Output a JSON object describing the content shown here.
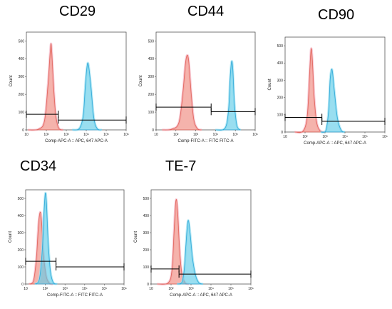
{
  "colors": {
    "red_fill": "#f08a80",
    "red_stroke": "#e0645a",
    "red_halo": "#f7b8c8",
    "blue_fill": "#63cde8",
    "blue_stroke": "#2fa7d8",
    "blue_halo": "#9fe3f2",
    "grey_fill": "#8fa6ad",
    "gate": "#000000",
    "frame": "#555555"
  },
  "chart_data": [
    {
      "type": "histogram",
      "title": "CD29",
      "xlabel": "Comp-APC-A :: APC, 647 APC-A",
      "ylabel": "Count",
      "x_scale": "log",
      "xlim": [
        10,
        1000000
      ],
      "x_ticks": [
        "10",
        "10²",
        "10³",
        "10⁴",
        "10⁵",
        "10⁶"
      ],
      "ylim": [
        0,
        550
      ],
      "y_ticks": [
        "0",
        "100",
        "200",
        "300",
        "400",
        "500"
      ],
      "series": [
        {
          "color": "red",
          "values": [
            [
              12,
              0
            ],
            [
              40,
              4
            ],
            [
              80,
              50
            ],
            [
              120,
              250
            ],
            [
              150,
              410
            ],
            [
              170,
              485
            ],
            [
              190,
              430
            ],
            [
              240,
              220
            ],
            [
              300,
              80
            ],
            [
              420,
              10
            ],
            [
              700,
              0
            ]
          ]
        },
        {
          "color": "blue",
          "values": [
            [
              2000,
              0
            ],
            [
              4500,
              8
            ],
            [
              7000,
              80
            ],
            [
              9000,
              250
            ],
            [
              11000,
              360
            ],
            [
              13000,
              365
            ],
            [
              17000,
              250
            ],
            [
              24000,
              70
            ],
            [
              35000,
              8
            ],
            [
              60000,
              0
            ]
          ]
        }
      ],
      "gates": [
        {
          "y": 88,
          "x": [
            10,
            400
          ]
        },
        {
          "y": 55,
          "x": [
            400,
            1000000
          ]
        }
      ]
    },
    {
      "type": "histogram",
      "title": "CD44",
      "xlabel": "Comp-FITC-A :: FITC FITC-A",
      "ylabel": "Count",
      "x_scale": "log",
      "xlim": [
        10,
        1000000
      ],
      "x_ticks": [
        "10",
        "10²",
        "10³",
        "10⁴",
        "10⁵",
        "10⁶"
      ],
      "ylim": [
        0,
        550
      ],
      "y_ticks": [
        "0",
        "100",
        "200",
        "300",
        "400",
        "500"
      ],
      "series": [
        {
          "color": "red",
          "values": [
            [
              20,
              0
            ],
            [
              60,
              4
            ],
            [
              140,
              40
            ],
            [
              220,
              200
            ],
            [
              300,
              370
            ],
            [
              370,
              420
            ],
            [
              450,
              380
            ],
            [
              600,
              200
            ],
            [
              800,
              60
            ],
            [
              1200,
              8
            ],
            [
              2000,
              0
            ]
          ]
        },
        {
          "color": "blue",
          "values": [
            [
              10000,
              0
            ],
            [
              30000,
              10
            ],
            [
              45000,
              110
            ],
            [
              55000,
              300
            ],
            [
              65000,
              385
            ],
            [
              75000,
              340
            ],
            [
              90000,
              150
            ],
            [
              120000,
              25
            ],
            [
              180000,
              0
            ]
          ]
        }
      ],
      "gates": [
        {
          "y": 128,
          "x": [
            10,
            6000
          ]
        },
        {
          "y": 103,
          "x": [
            6000,
            1000000
          ]
        }
      ]
    },
    {
      "type": "histogram",
      "title": "CD90",
      "xlabel": "Comp-APC-A :: APC, 647 APC-A",
      "ylabel": "Count",
      "x_scale": "log",
      "xlim": [
        10,
        1000000
      ],
      "x_ticks": [
        "10",
        "10²",
        "10³",
        "10⁴",
        "10⁵",
        "10⁶"
      ],
      "ylim": [
        0,
        550
      ],
      "y_ticks": [
        "0",
        "100",
        "200",
        "300",
        "400",
        "500"
      ],
      "series": [
        {
          "color": "red",
          "values": [
            [
              30,
              0
            ],
            [
              80,
              6
            ],
            [
              130,
              100
            ],
            [
              170,
              350
            ],
            [
              200,
              480
            ],
            [
              230,
              430
            ],
            [
              290,
              200
            ],
            [
              380,
              60
            ],
            [
              550,
              10
            ],
            [
              900,
              0
            ]
          ]
        },
        {
          "color": "blue",
          "values": [
            [
              600,
              0
            ],
            [
              1100,
              10
            ],
            [
              1500,
              120
            ],
            [
              1800,
              300
            ],
            [
              2100,
              360
            ],
            [
              2400,
              345
            ],
            [
              3000,
              230
            ],
            [
              4200,
              80
            ],
            [
              6500,
              10
            ],
            [
              10000,
              0
            ]
          ]
        }
      ],
      "gates": [
        {
          "y": 85,
          "x": [
            10,
            700
          ]
        },
        {
          "y": 62,
          "x": [
            700,
            1000000
          ]
        }
      ]
    },
    {
      "type": "histogram",
      "title": "CD34",
      "xlabel": "Comp-FITC-A :: FITC FITC-A",
      "ylabel": "Count",
      "x_scale": "log",
      "xlim": [
        10,
        1000000
      ],
      "x_ticks": [
        "10",
        "10²",
        "10³",
        "10⁴",
        "10⁵",
        "10⁶"
      ],
      "ylim": [
        0,
        550
      ],
      "y_ticks": [
        "0",
        "100",
        "200",
        "300",
        "400",
        "500"
      ],
      "series": [
        {
          "color": "red",
          "values": [
            [
              15,
              0
            ],
            [
              25,
              20
            ],
            [
              35,
              150
            ],
            [
              45,
              350
            ],
            [
              55,
              420
            ],
            [
              65,
              360
            ],
            [
              80,
              180
            ],
            [
              110,
              50
            ],
            [
              160,
              6
            ],
            [
              250,
              0
            ]
          ]
        },
        {
          "color": "blue",
          "values": [
            [
              30,
              0
            ],
            [
              50,
              30
            ],
            [
              70,
              200
            ],
            [
              85,
              420
            ],
            [
              100,
              530
            ],
            [
              115,
              470
            ],
            [
              140,
              250
            ],
            [
              180,
              80
            ],
            [
              250,
              10
            ],
            [
              400,
              0
            ]
          ]
        }
      ],
      "gates": [
        {
          "y": 133,
          "x": [
            10,
            350
          ]
        },
        {
          "y": 100,
          "x": [
            350,
            1000000
          ]
        }
      ]
    },
    {
      "type": "histogram",
      "title": "TE-7",
      "xlabel": "Comp-APC-A :: APC, 647 APC-A",
      "ylabel": "Count",
      "x_scale": "log",
      "xlim": [
        10,
        1000000
      ],
      "x_ticks": [
        "10",
        "10²",
        "10³",
        "10⁴",
        "10⁵",
        "10⁶"
      ],
      "ylim": [
        0,
        550
      ],
      "y_ticks": [
        "0",
        "100",
        "200",
        "300",
        "400",
        "500"
      ],
      "series": [
        {
          "color": "red",
          "values": [
            [
              20,
              0
            ],
            [
              70,
              6
            ],
            [
              110,
              80
            ],
            [
              140,
              300
            ],
            [
              165,
              460
            ],
            [
              190,
              490
            ],
            [
              220,
              400
            ],
            [
              270,
              200
            ],
            [
              350,
              60
            ],
            [
              500,
              8
            ],
            [
              800,
              0
            ]
          ]
        },
        {
          "color": "blue",
          "values": [
            [
              200,
              0
            ],
            [
              350,
              10
            ],
            [
              450,
              80
            ],
            [
              550,
              220
            ],
            [
              650,
              340
            ],
            [
              750,
              370
            ],
            [
              900,
              300
            ],
            [
              1200,
              150
            ],
            [
              1700,
              50
            ],
            [
              2500,
              8
            ],
            [
              4000,
              0
            ]
          ]
        }
      ],
      "gates": [
        {
          "y": 88,
          "x": [
            10,
            250
          ]
        },
        {
          "y": 58,
          "x": [
            250,
            1000000
          ]
        }
      ]
    }
  ]
}
